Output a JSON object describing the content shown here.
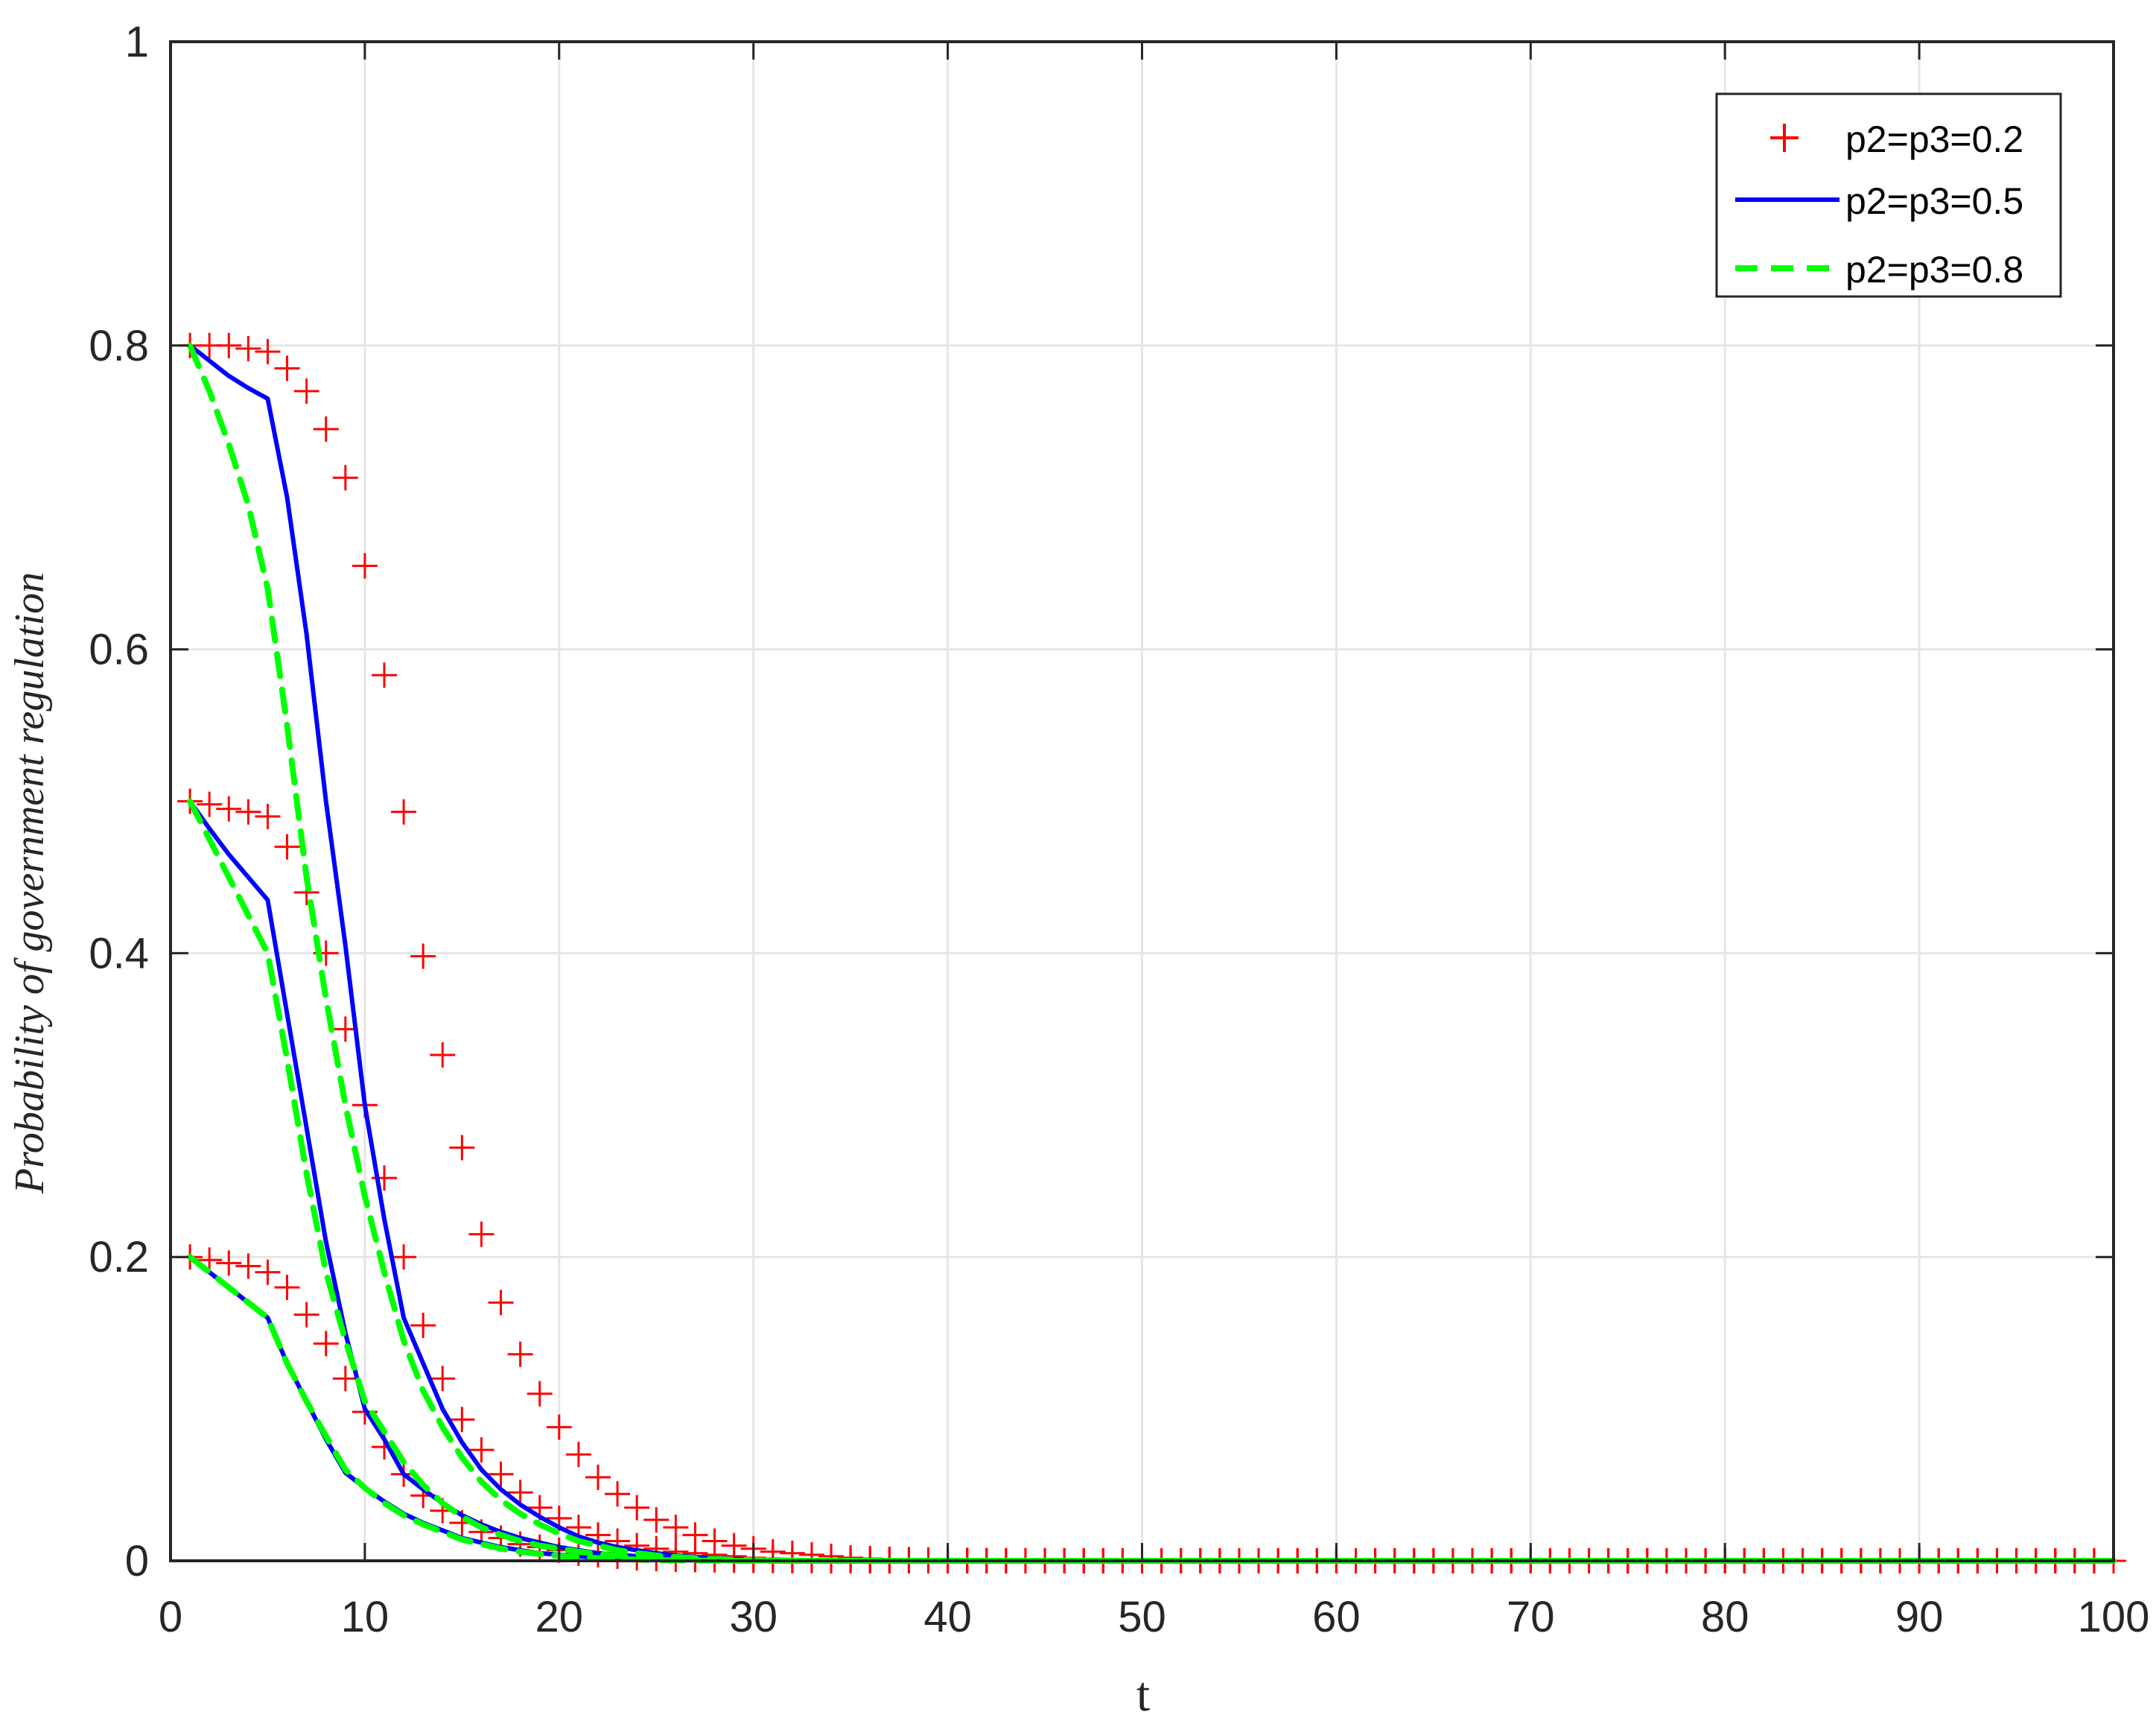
{
  "chart_data": {
    "type": "line",
    "title": "",
    "xlabel": "t",
    "ylabel": "Probability of government regulation",
    "xlim": [
      0,
      100
    ],
    "ylim": [
      0,
      1
    ],
    "xticks": [
      0,
      10,
      20,
      30,
      40,
      50,
      60,
      70,
      80,
      90,
      100
    ],
    "yticks": [
      0,
      0.2,
      0.4,
      0.6,
      0.8,
      1
    ],
    "xtick_labels": [
      "0",
      "10",
      "20",
      "30",
      "40",
      "50",
      "60",
      "70",
      "80",
      "90",
      "100"
    ],
    "ytick_labels": [
      "0",
      "0.2",
      "0.4",
      "0.6",
      "0.8",
      "1"
    ],
    "grid": true,
    "box": true,
    "legend_position": "top-right",
    "legend": [
      "p2=p3=0.2",
      "p2=p3=0.5",
      "p2=p3=0.8"
    ],
    "series": [
      {
        "name": "p2=p3=0.2",
        "style": "marker-plus",
        "color": "#ff0000",
        "runs": [
          {
            "initial": 0.8,
            "values": [
              0.8,
              0.8,
              0.8,
              0.798,
              0.796,
              0.785,
              0.77,
              0.745,
              0.713,
              0.655,
              0.583,
              0.493,
              0.398,
              0.333,
              0.272,
              0.215,
              0.17,
              0.136,
              0.11,
              0.088,
              0.07,
              0.055,
              0.044,
              0.035,
              0.027,
              0.022,
              0.017,
              0.013,
              0.01,
              0.008,
              0.006,
              0.005,
              0.004,
              0.003,
              0.002,
              0.0015,
              0.001,
              0.0008,
              0.0006,
              0.0004,
              0.0003,
              0.0002,
              0.0001,
              0.0001,
              0.0001,
              0.0001,
              0,
              0,
              0,
              0,
              0,
              0,
              0,
              0,
              0,
              0,
              0,
              0,
              0,
              0,
              0,
              0,
              0,
              0,
              0,
              0,
              0,
              0,
              0,
              0,
              0,
              0,
              0,
              0,
              0,
              0,
              0,
              0,
              0,
              0,
              0,
              0,
              0,
              0,
              0,
              0,
              0,
              0,
              0,
              0,
              0,
              0,
              0,
              0,
              0,
              0,
              0,
              0,
              0,
              0
            ]
          },
          {
            "initial": 0.5,
            "values": [
              0.5,
              0.498,
              0.495,
              0.493,
              0.49,
              0.47,
              0.44,
              0.4,
              0.35,
              0.3,
              0.252,
              0.2,
              0.155,
              0.12,
              0.093,
              0.073,
              0.057,
              0.045,
              0.035,
              0.028,
              0.022,
              0.017,
              0.013,
              0.01,
              0.008,
              0.006,
              0.005,
              0.004,
              0.003,
              0.002,
              0.0015,
              0.001,
              0.0008,
              0.0006,
              0.0004,
              0.0003,
              0.0002,
              0.0001,
              0.0001,
              0,
              0,
              0,
              0,
              0,
              0,
              0,
              0,
              0,
              0,
              0,
              0,
              0,
              0,
              0,
              0,
              0,
              0,
              0,
              0,
              0,
              0,
              0,
              0,
              0,
              0,
              0,
              0,
              0,
              0,
              0,
              0,
              0,
              0,
              0,
              0,
              0,
              0,
              0,
              0,
              0,
              0,
              0,
              0,
              0,
              0,
              0,
              0,
              0,
              0,
              0,
              0,
              0,
              0,
              0,
              0,
              0,
              0,
              0,
              0,
              0
            ]
          },
          {
            "initial": 0.2,
            "values": [
              0.2,
              0.198,
              0.196,
              0.194,
              0.19,
              0.18,
              0.162,
              0.143,
              0.12,
              0.098,
              0.075,
              0.057,
              0.043,
              0.033,
              0.025,
              0.019,
              0.015,
              0.011,
              0.009,
              0.007,
              0.005,
              0.004,
              0.003,
              0.002,
              0.0015,
              0.001,
              0.0008,
              0.0006,
              0.0004,
              0.0003,
              0.0002,
              0.0001,
              0.0001,
              0,
              0,
              0,
              0,
              0,
              0,
              0,
              0,
              0,
              0,
              0,
              0,
              0,
              0,
              0,
              0,
              0,
              0,
              0,
              0,
              0,
              0,
              0,
              0,
              0,
              0,
              0,
              0,
              0,
              0,
              0,
              0,
              0,
              0,
              0,
              0,
              0,
              0,
              0,
              0,
              0,
              0,
              0,
              0,
              0,
              0,
              0,
              0,
              0,
              0,
              0,
              0,
              0,
              0,
              0,
              0,
              0,
              0,
              0,
              0,
              0,
              0,
              0,
              0,
              0,
              0,
              0
            ]
          }
        ]
      },
      {
        "name": "p2=p3=0.5",
        "style": "solid",
        "color": "#0000ff",
        "runs": [
          {
            "initial": 0.8,
            "values": [
              0.8,
              0.79,
              0.78,
              0.772,
              0.765,
              0.7,
              0.61,
              0.5,
              0.405,
              0.3,
              0.225,
              0.16,
              0.13,
              0.1,
              0.078,
              0.06,
              0.047,
              0.037,
              0.029,
              0.022,
              0.016,
              0.012,
              0.009,
              0.007,
              0.005,
              0.0035,
              0.0025,
              0.0018,
              0.0012,
              0.0008,
              0.0005,
              0.0003,
              0.0002,
              0.0001,
              0,
              0,
              0,
              0,
              0,
              0,
              0,
              0,
              0,
              0,
              0,
              0,
              0,
              0,
              0,
              0,
              0,
              0,
              0,
              0,
              0,
              0,
              0,
              0,
              0,
              0,
              0,
              0,
              0,
              0,
              0,
              0,
              0,
              0,
              0,
              0,
              0,
              0,
              0,
              0,
              0,
              0,
              0,
              0,
              0,
              0,
              0,
              0,
              0,
              0,
              0,
              0,
              0,
              0,
              0,
              0,
              0,
              0,
              0,
              0,
              0,
              0,
              0,
              0,
              0,
              0
            ]
          },
          {
            "initial": 0.5,
            "values": [
              0.5,
              0.482,
              0.465,
              0.45,
              0.435,
              0.36,
              0.285,
              0.21,
              0.15,
              0.1,
              0.08,
              0.057,
              0.047,
              0.038,
              0.03,
              0.024,
              0.019,
              0.015,
              0.012,
              0.009,
              0.007,
              0.005,
              0.004,
              0.003,
              0.002,
              0.0015,
              0.001,
              0.0007,
              0.0005,
              0.0003,
              0.0002,
              0.0001,
              0,
              0,
              0,
              0,
              0,
              0,
              0,
              0,
              0,
              0,
              0,
              0,
              0,
              0,
              0,
              0,
              0,
              0,
              0,
              0,
              0,
              0,
              0,
              0,
              0,
              0,
              0,
              0,
              0,
              0,
              0,
              0,
              0,
              0,
              0,
              0,
              0,
              0,
              0,
              0,
              0,
              0,
              0,
              0,
              0,
              0,
              0,
              0,
              0,
              0,
              0,
              0,
              0,
              0,
              0,
              0,
              0,
              0,
              0,
              0,
              0,
              0,
              0,
              0,
              0,
              0,
              0,
              0
            ]
          },
          {
            "initial": 0.2,
            "values": [
              0.2,
              0.19,
              0.18,
              0.17,
              0.16,
              0.13,
              0.105,
              0.08,
              0.058,
              0.048,
              0.039,
              0.031,
              0.025,
              0.02,
              0.015,
              0.012,
              0.009,
              0.007,
              0.005,
              0.004,
              0.003,
              0.002,
              0.0015,
              0.001,
              0.0007,
              0.0005,
              0.0003,
              0.0002,
              0.0001,
              0,
              0,
              0,
              0,
              0,
              0,
              0,
              0,
              0,
              0,
              0,
              0,
              0,
              0,
              0,
              0,
              0,
              0,
              0,
              0,
              0,
              0,
              0,
              0,
              0,
              0,
              0,
              0,
              0,
              0,
              0,
              0,
              0,
              0,
              0,
              0,
              0,
              0,
              0,
              0,
              0,
              0,
              0,
              0,
              0,
              0,
              0,
              0,
              0,
              0,
              0,
              0,
              0,
              0,
              0,
              0,
              0,
              0,
              0,
              0,
              0,
              0,
              0,
              0,
              0,
              0,
              0,
              0,
              0,
              0,
              0
            ]
          }
        ]
      },
      {
        "name": "p2=p3=0.8",
        "style": "dashed",
        "color": "#00ff00",
        "runs": [
          {
            "initial": 0.8,
            "values": [
              0.8,
              0.77,
              0.735,
              0.695,
              0.64,
              0.55,
              0.45,
              0.37,
              0.3,
              0.24,
              0.19,
              0.145,
              0.112,
              0.088,
              0.068,
              0.052,
              0.04,
              0.031,
              0.024,
              0.018,
              0.013,
              0.01,
              0.007,
              0.005,
              0.0035,
              0.0025,
              0.0017,
              0.0011,
              0.0007,
              0.0004,
              0.0002,
              0.0001,
              0,
              0,
              0,
              0,
              0,
              0,
              0,
              0,
              0,
              0,
              0,
              0,
              0,
              0,
              0,
              0,
              0,
              0,
              0,
              0,
              0,
              0,
              0,
              0,
              0,
              0,
              0,
              0,
              0,
              0,
              0,
              0,
              0,
              0,
              0,
              0,
              0,
              0,
              0,
              0,
              0,
              0,
              0,
              0,
              0,
              0,
              0,
              0,
              0,
              0,
              0,
              0,
              0,
              0,
              0,
              0,
              0,
              0,
              0,
              0,
              0,
              0,
              0,
              0,
              0,
              0,
              0,
              0
            ]
          },
          {
            "initial": 0.5,
            "values": [
              0.5,
              0.475,
              0.45,
              0.425,
              0.4,
              0.33,
              0.255,
              0.19,
              0.145,
              0.105,
              0.085,
              0.065,
              0.05,
              0.038,
              0.029,
              0.022,
              0.017,
              0.013,
              0.01,
              0.008,
              0.006,
              0.0045,
              0.0033,
              0.0024,
              0.0017,
              0.0012,
              0.0008,
              0.0005,
              0.0003,
              0.0002,
              0.0001,
              0,
              0,
              0,
              0,
              0,
              0,
              0,
              0,
              0,
              0,
              0,
              0,
              0,
              0,
              0,
              0,
              0,
              0,
              0,
              0,
              0,
              0,
              0,
              0,
              0,
              0,
              0,
              0,
              0,
              0,
              0,
              0,
              0,
              0,
              0,
              0,
              0,
              0,
              0,
              0,
              0,
              0,
              0,
              0,
              0,
              0,
              0,
              0,
              0,
              0,
              0,
              0,
              0,
              0,
              0,
              0,
              0,
              0,
              0,
              0,
              0,
              0,
              0,
              0,
              0,
              0,
              0,
              0,
              0
            ]
          },
          {
            "initial": 0.2,
            "values": [
              0.2,
              0.19,
              0.18,
              0.17,
              0.16,
              0.13,
              0.105,
              0.082,
              0.06,
              0.048,
              0.038,
              0.03,
              0.024,
              0.019,
              0.014,
              0.011,
              0.008,
              0.006,
              0.0045,
              0.0033,
              0.0024,
              0.0017,
              0.0012,
              0.0008,
              0.0005,
              0.0003,
              0.0002,
              0.0001,
              0,
              0,
              0,
              0,
              0,
              0,
              0,
              0,
              0,
              0,
              0,
              0,
              0,
              0,
              0,
              0,
              0,
              0,
              0,
              0,
              0,
              0,
              0,
              0,
              0,
              0,
              0,
              0,
              0,
              0,
              0,
              0,
              0,
              0,
              0,
              0,
              0,
              0,
              0,
              0,
              0,
              0,
              0,
              0,
              0,
              0,
              0,
              0,
              0,
              0,
              0,
              0,
              0,
              0,
              0,
              0,
              0,
              0,
              0,
              0,
              0,
              0,
              0,
              0,
              0,
              0,
              0,
              0,
              0,
              0,
              0,
              0
            ]
          }
        ]
      }
    ]
  }
}
